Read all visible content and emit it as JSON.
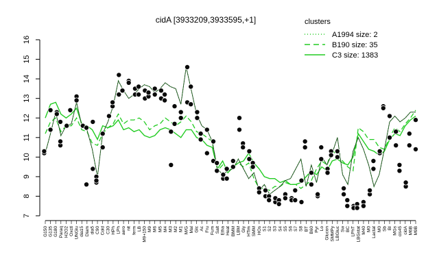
{
  "chart_data": {
    "type": "line",
    "title": "cidA [3933209,3933595,+1]",
    "xlabel": "",
    "ylabel": "",
    "ylim": [
      7,
      16
    ],
    "yticks": [
      7,
      8,
      9,
      10,
      11,
      12,
      13,
      14,
      15,
      16
    ],
    "grid": false,
    "legend": {
      "title": "clusters",
      "placement": "top-right",
      "entries": [
        {
          "label": "A1994 size: 2",
          "style": "dotted"
        },
        {
          "label": "B190 size: 35",
          "style": "dashed"
        },
        {
          "label": "C3 size: 1383",
          "style": "solid"
        }
      ]
    },
    "x_tick_labels": [
      "G150",
      "G135",
      "G180",
      "Paraq",
      "H2O2",
      "Oxctl",
      "UNGlu",
      "dia15",
      "Diam",
      "dia5",
      "C90",
      "Cold",
      "C30",
      "HPh",
      "LPh",
      "aero",
      "nit",
      "ferm",
      "LB",
      "M9+150",
      "M9",
      "M6",
      "M5",
      "M4",
      "M3",
      "M2",
      "M1",
      "M/G",
      "Mal",
      "Glc",
      "Ac",
      "Fru",
      "Fum",
      "Salt",
      "Etha",
      "Heat",
      "BMM",
      "LBM",
      "Gly",
      "HTim",
      "SMM",
      "HOs",
      "S1",
      "S2",
      "S3",
      "S4",
      "S5",
      "S6",
      "S7",
      "S8",
      "BT",
      "B60",
      "Pyr",
      "Lo",
      "Glucon",
      "SMMPy",
      "LBGluc",
      "Sw",
      "BC",
      "LPhT",
      "LBGstat",
      "M40",
      "M0",
      "Lactat",
      "M0",
      "Sb",
      "BI",
      "MGs",
      "cis45",
      "cidA",
      "M6B",
      "M9B"
    ],
    "series": [
      {
        "name": "A1994 size: 2",
        "values": [
          10.2,
          11.2,
          12.3,
          11.1,
          11.6,
          11.7,
          12.8,
          11.6,
          11.4,
          10.4,
          9.0,
          11.2,
          11.8,
          12.6,
          13.9,
          13.4,
          13.0,
          13.2,
          13.5,
          13.7,
          13.6,
          13.3,
          13.5,
          13.8,
          13.6,
          13.5,
          12.7,
          14.6,
          13.4,
          12.2,
          11.6,
          11.4,
          10.8,
          9.4,
          9.1,
          9.3,
          9.4,
          9.9,
          9.4,
          8.9,
          9.2,
          8.3,
          8.6,
          8.1,
          8.3,
          8.5,
          8.8,
          8.9,
          9.4,
          9.9,
          8.5,
          9.6,
          8.7,
          10.0,
          9.6,
          10.2,
          11.0,
          9.1,
          8.6,
          10.3,
          11.0,
          10.4,
          9.6,
          8.5,
          9.1,
          10.4,
          11.8,
          12.1,
          11.8,
          12.0,
          12.3,
          12.3
        ]
      },
      {
        "name": "B190 size: 35",
        "values": [
          11.2,
          11.8,
          12.0,
          11.3,
          11.6,
          11.6,
          12.0,
          11.4,
          11.3,
          10.7,
          10.6,
          11.2,
          11.5,
          11.7,
          12.2,
          11.7,
          11.9,
          11.9,
          12.0,
          11.8,
          11.4,
          11.6,
          11.7,
          12.0,
          11.8,
          11.6,
          11.8,
          12.1,
          11.8,
          11.3,
          11.2,
          11.0,
          10.8,
          9.3,
          9.6,
          9.2,
          9.5,
          9.7,
          9.5,
          9.7,
          8.9,
          8.4,
          8.4,
          8.3,
          8.5,
          8.5,
          8.7,
          8.6,
          8.6,
          8.4,
          8.6,
          8.8,
          9.4,
          9.8,
          9.6,
          10.4,
          10.0,
          9.8,
          9.5,
          9.3,
          11.5,
          11.3,
          10.9,
          10.9,
          10.5,
          10.4,
          11.0,
          11.5,
          11.3,
          11.7,
          12.0,
          12.4
        ]
      },
      {
        "name": "C3 size: 1383",
        "values": [
          12.0,
          12.7,
          12.8,
          12.2,
          12.0,
          12.2,
          12.5,
          11.7,
          11.6,
          11.4,
          10.9,
          11.6,
          11.5,
          11.6,
          11.9,
          11.4,
          11.5,
          11.3,
          11.4,
          11.1,
          11.0,
          11.1,
          11.4,
          11.5,
          11.4,
          11.2,
          11.0,
          11.4,
          11.4,
          11.0,
          10.9,
          10.6,
          10.5,
          9.4,
          9.8,
          9.2,
          9.5,
          9.7,
          9.8,
          10.2,
          9.7,
          9.4,
          9.0,
          8.9,
          8.9,
          8.7,
          8.8,
          8.6,
          8.6,
          8.7,
          9.0,
          9.3,
          9.1,
          9.5,
          9.3,
          9.8,
          9.9,
          9.7,
          9.6,
          10.0,
          11.2,
          10.8,
          10.4,
          10.3,
          10.1,
          10.3,
          10.9,
          11.2,
          11.1,
          11.6,
          11.9,
          12.1
        ]
      }
    ],
    "points": [
      [
        0,
        10.2
      ],
      [
        0,
        10.3
      ],
      [
        1,
        11.4
      ],
      [
        1,
        12.4
      ],
      [
        2,
        12.3
      ],
      [
        2,
        12.2
      ],
      [
        3,
        10.6
      ],
      [
        3,
        10.8
      ],
      [
        3,
        11.8
      ],
      [
        4,
        11.6
      ],
      [
        5,
        12.4
      ],
      [
        6,
        13.1
      ],
      [
        6,
        12.9
      ],
      [
        7,
        11.6
      ],
      [
        8,
        11.5
      ],
      [
        8,
        8.6
      ],
      [
        9,
        11.8
      ],
      [
        9,
        9.4
      ],
      [
        10,
        9.0
      ],
      [
        10,
        8.7
      ],
      [
        10,
        8.8
      ],
      [
        11,
        11.2
      ],
      [
        11,
        10.5
      ],
      [
        12,
        12.1
      ],
      [
        13,
        12.6
      ],
      [
        13,
        12.8
      ],
      [
        14,
        14.2
      ],
      [
        14,
        13.2
      ],
      [
        15,
        13.4
      ],
      [
        15,
        13.4
      ],
      [
        16,
        13.9
      ],
      [
        16,
        13.8
      ],
      [
        17,
        13.2
      ],
      [
        17,
        13.5
      ],
      [
        18,
        13.6
      ],
      [
        18,
        13.2
      ],
      [
        19,
        13.4
      ],
      [
        19,
        13.0
      ],
      [
        20,
        13.1
      ],
      [
        20,
        13.3
      ],
      [
        21,
        13.5
      ],
      [
        21,
        13.2
      ],
      [
        22,
        13.0
      ],
      [
        22,
        13.4
      ],
      [
        23,
        13.2
      ],
      [
        23,
        12.9
      ],
      [
        24,
        11.3
      ],
      [
        24,
        9.6
      ],
      [
        25,
        11.7
      ],
      [
        25,
        12.6
      ],
      [
        26,
        12.3
      ],
      [
        26,
        12.0
      ],
      [
        27,
        12.8
      ],
      [
        27,
        14.6
      ],
      [
        28,
        13.6
      ],
      [
        28,
        12.7
      ],
      [
        29,
        12.3
      ],
      [
        29,
        12.0
      ],
      [
        30,
        11.2
      ],
      [
        30,
        10.9
      ],
      [
        31,
        11.4
      ],
      [
        31,
        10.2
      ],
      [
        32,
        10.8
      ],
      [
        32,
        9.8
      ],
      [
        33,
        9.3
      ],
      [
        33,
        9.7
      ],
      [
        34,
        8.9
      ],
      [
        34,
        9.1
      ],
      [
        35,
        8.9
      ],
      [
        35,
        9.4
      ],
      [
        36,
        9.8
      ],
      [
        36,
        9.5
      ],
      [
        37,
        11.4
      ],
      [
        37,
        12.0
      ],
      [
        38,
        10.7
      ],
      [
        38,
        10.5
      ],
      [
        39,
        10.3
      ],
      [
        39,
        9.9
      ],
      [
        40,
        9.7
      ],
      [
        40,
        9.5
      ],
      [
        41,
        8.4
      ],
      [
        41,
        8.2
      ],
      [
        42,
        8.3
      ],
      [
        42,
        8.0
      ],
      [
        43,
        8.0
      ],
      [
        43,
        7.8
      ],
      [
        44,
        7.7
      ],
      [
        44,
        7.9
      ],
      [
        45,
        7.8
      ],
      [
        45,
        7.6
      ],
      [
        46,
        8.1
      ],
      [
        46,
        7.9
      ],
      [
        47,
        7.9
      ],
      [
        47,
        7.8
      ],
      [
        48,
        8.3
      ],
      [
        48,
        7.8
      ],
      [
        49,
        7.7
      ],
      [
        49,
        8.8
      ],
      [
        50,
        10.5
      ],
      [
        50,
        10.8
      ],
      [
        51,
        9.2
      ],
      [
        51,
        8.6
      ],
      [
        52,
        8.0
      ],
      [
        52,
        8.1
      ],
      [
        53,
        10.5
      ],
      [
        53,
        9.9
      ],
      [
        54,
        9.4
      ],
      [
        54,
        9.2
      ],
      [
        55,
        10.3
      ],
      [
        55,
        10.1
      ],
      [
        56,
        10.3
      ],
      [
        56,
        10.0
      ],
      [
        57,
        8.4
      ],
      [
        57,
        8.1
      ],
      [
        58,
        7.8
      ],
      [
        58,
        7.5
      ],
      [
        59,
        7.5
      ],
      [
        59,
        7.4
      ],
      [
        60,
        7.6
      ],
      [
        60,
        7.4
      ],
      [
        61,
        7.7
      ],
      [
        61,
        7.5
      ],
      [
        62,
        8.1
      ],
      [
        62,
        8.3
      ],
      [
        63,
        9.4
      ],
      [
        63,
        9.8
      ],
      [
        64,
        10.2
      ],
      [
        64,
        10.3
      ],
      [
        65,
        12.6
      ],
      [
        65,
        12.5
      ],
      [
        66,
        12.1
      ],
      [
        66,
        11.0
      ],
      [
        67,
        11.3
      ],
      [
        67,
        10.6
      ],
      [
        68,
        9.6
      ],
      [
        68,
        9.3
      ],
      [
        69,
        8.5
      ],
      [
        69,
        8.7
      ],
      [
        70,
        11.2
      ],
      [
        70,
        10.6
      ],
      [
        71,
        11.9
      ],
      [
        71,
        10.4
      ]
    ]
  }
}
